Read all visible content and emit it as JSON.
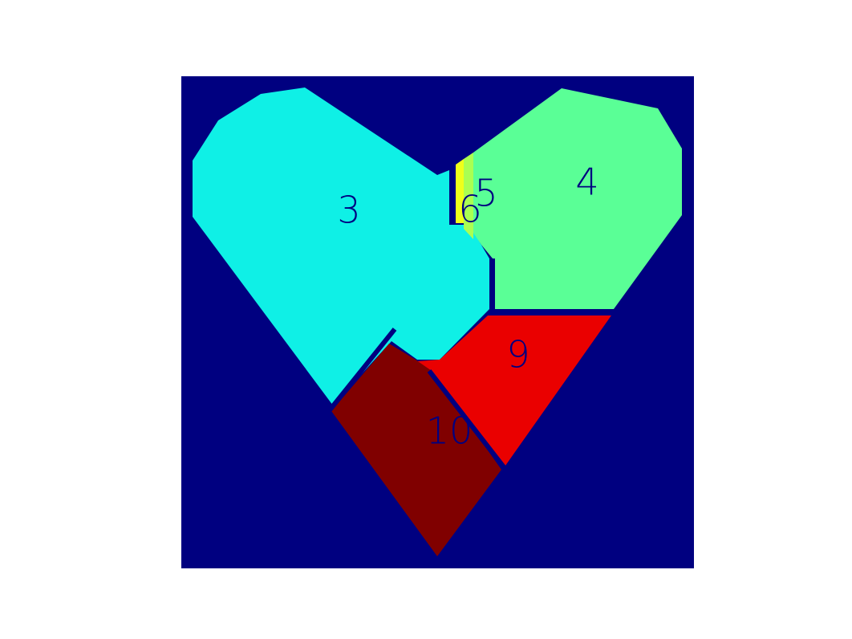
{
  "colors": {
    "background": "#ffffff",
    "canvas": "#000080",
    "label": "#000080"
  },
  "regions": [
    {
      "id": 3,
      "label": "3",
      "color": "#0ff0e6"
    },
    {
      "id": 4,
      "label": "4",
      "color": "#5aff96"
    },
    {
      "id": 5,
      "label": "5",
      "color": "#aaff52"
    },
    {
      "id": 6,
      "label": "6",
      "color": "#f0ff1a"
    },
    {
      "id": 9,
      "label": "9",
      "color": "#ea0000"
    },
    {
      "id": 10,
      "label": "10",
      "color": "#800000"
    }
  ]
}
